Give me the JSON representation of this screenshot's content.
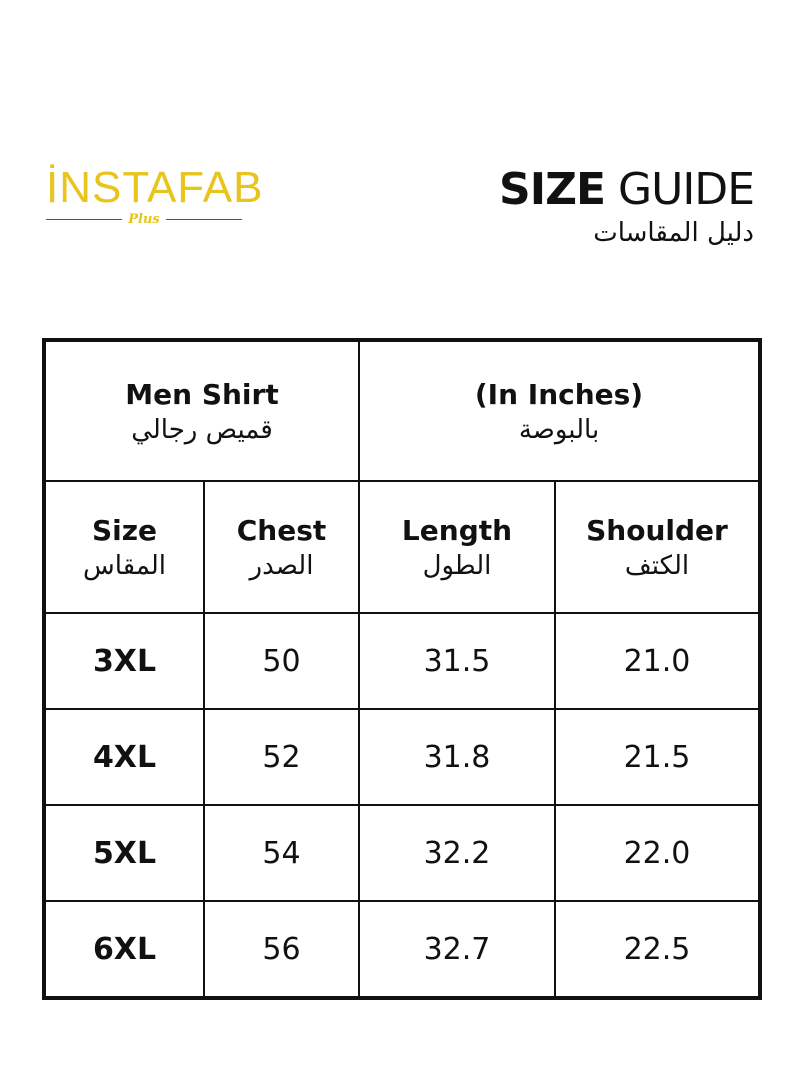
{
  "logo": {
    "brand": "İNSTAFAB",
    "sub": "Plus",
    "color": "#e8c41c"
  },
  "title": {
    "bold": "SIZE",
    "rest": " GUIDE",
    "arabic": "دليل المقاسات"
  },
  "table": {
    "header": [
      {
        "en": "Men Shirt",
        "ar": "قميص رجالي"
      },
      {
        "en": "(In Inches)",
        "ar": "بالبوصة"
      }
    ],
    "columns": [
      {
        "en": "Size",
        "ar": "المقاس"
      },
      {
        "en": "Chest",
        "ar": "الصدر"
      },
      {
        "en": "Length",
        "ar": "الطول"
      },
      {
        "en": "Shoulder",
        "ar": "الكتف"
      }
    ],
    "rows": [
      [
        "3XL",
        "50",
        "31.5",
        "21.0"
      ],
      [
        "4XL",
        "52",
        "31.8",
        "21.5"
      ],
      [
        "5XL",
        "54",
        "32.2",
        "22.0"
      ],
      [
        "6XL",
        "56",
        "32.7",
        "22.5"
      ]
    ]
  }
}
